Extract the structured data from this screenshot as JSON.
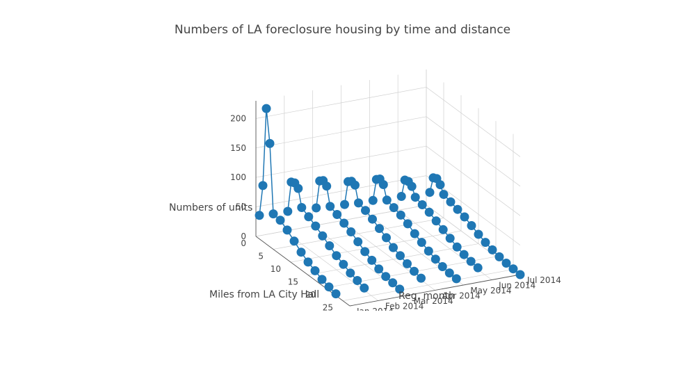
{
  "chart_data": {
    "type": "scatter3d-lines",
    "title": "Numbers of LA foreclosure housing by time and distance",
    "x_axis": {
      "label": "Miles from LA City Hall",
      "ticks": [
        "0",
        "5",
        "10",
        "15",
        "20",
        "25"
      ],
      "range": [
        0,
        27
      ]
    },
    "y_axis": {
      "label": "Reg. month",
      "ticks": [
        "Jan 2014",
        "Feb 2014",
        "Mar 2014",
        "Apr 2014",
        "May 2014",
        "Jun 2014",
        "Jul 2014"
      ]
    },
    "z_axis": {
      "label": "Numbers of units",
      "ticks": [
        "0",
        "50",
        "100",
        "150",
        "200"
      ],
      "range": [
        0,
        230
      ]
    },
    "grid": true,
    "marker_color": "#1f77b4",
    "series": [
      {
        "name": "Jan 2014",
        "points": [
          [
            1,
            40
          ],
          [
            2,
            95
          ],
          [
            3,
            230
          ],
          [
            4,
            175
          ],
          [
            5,
            60
          ],
          [
            7,
            58
          ],
          [
            9,
            50
          ],
          [
            11,
            40
          ],
          [
            13,
            30
          ],
          [
            15,
            22
          ],
          [
            17,
            16
          ],
          [
            19,
            10
          ],
          [
            21,
            6
          ],
          [
            23,
            3
          ]
        ]
      },
      {
        "name": "Feb 2014",
        "points": [
          [
            1,
            38
          ],
          [
            2,
            92
          ],
          [
            3,
            95
          ],
          [
            4,
            90
          ],
          [
            5,
            62
          ],
          [
            7,
            55
          ],
          [
            9,
            48
          ],
          [
            11,
            40
          ],
          [
            13,
            32
          ],
          [
            15,
            24
          ],
          [
            17,
            18
          ],
          [
            19,
            12
          ],
          [
            21,
            8
          ],
          [
            23,
            4
          ]
        ]
      },
      {
        "name": "Mar 2014",
        "points": [
          [
            1,
            35
          ],
          [
            2,
            85
          ],
          [
            3,
            90
          ],
          [
            4,
            85
          ],
          [
            5,
            55
          ],
          [
            7,
            50
          ],
          [
            9,
            44
          ],
          [
            11,
            38
          ],
          [
            13,
            30
          ],
          [
            15,
            22
          ],
          [
            17,
            16
          ],
          [
            19,
            10
          ],
          [
            21,
            6
          ],
          [
            23,
            4
          ],
          [
            25,
            2
          ]
        ]
      },
      {
        "name": "Apr 2014",
        "points": [
          [
            1,
            32
          ],
          [
            2,
            75
          ],
          [
            3,
            80
          ],
          [
            4,
            78
          ],
          [
            5,
            52
          ],
          [
            7,
            48
          ],
          [
            9,
            42
          ],
          [
            11,
            35
          ],
          [
            13,
            28
          ],
          [
            15,
            20
          ],
          [
            17,
            15
          ],
          [
            19,
            10
          ],
          [
            21,
            6
          ],
          [
            23,
            3
          ]
        ]
      },
      {
        "name": "May 2014",
        "points": [
          [
            1,
            30
          ],
          [
            2,
            70
          ],
          [
            3,
            75
          ],
          [
            4,
            70
          ],
          [
            5,
            48
          ],
          [
            7,
            44
          ],
          [
            9,
            40
          ],
          [
            11,
            34
          ],
          [
            13,
            26
          ],
          [
            15,
            20
          ],
          [
            17,
            14
          ],
          [
            19,
            9
          ],
          [
            21,
            5
          ],
          [
            23,
            3
          ],
          [
            25,
            2
          ]
        ]
      },
      {
        "name": "Jun 2014",
        "points": [
          [
            1,
            28
          ],
          [
            2,
            60
          ],
          [
            3,
            62
          ],
          [
            4,
            58
          ],
          [
            5,
            44
          ],
          [
            7,
            40
          ],
          [
            9,
            36
          ],
          [
            11,
            30
          ],
          [
            13,
            24
          ],
          [
            15,
            18
          ],
          [
            17,
            12
          ],
          [
            19,
            8
          ],
          [
            21,
            5
          ],
          [
            23,
            3
          ]
        ]
      },
      {
        "name": "Jul 2014",
        "points": [
          [
            1,
            26
          ],
          [
            2,
            55
          ],
          [
            3,
            58
          ],
          [
            4,
            52
          ],
          [
            5,
            40
          ],
          [
            7,
            36
          ],
          [
            9,
            32
          ],
          [
            11,
            28
          ],
          [
            13,
            22
          ],
          [
            15,
            16
          ],
          [
            17,
            11
          ],
          [
            19,
            7
          ],
          [
            21,
            4
          ],
          [
            23,
            2
          ],
          [
            25,
            1
          ],
          [
            27,
            0
          ]
        ]
      }
    ]
  }
}
